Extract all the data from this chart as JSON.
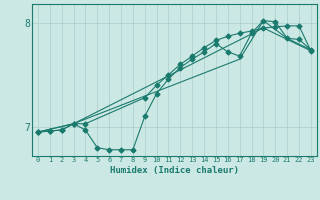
{
  "xlabel": "Humidex (Indice chaleur)",
  "background_color": "#cce8e4",
  "line_color": "#1a7a6e",
  "grid_color": "#aacfcb",
  "xlim": [
    -0.5,
    23.5
  ],
  "ylim": [
    6.72,
    8.18
  ],
  "yticks": [
    7,
    8
  ],
  "xticks": [
    0,
    1,
    2,
    3,
    4,
    5,
    6,
    7,
    8,
    9,
    10,
    11,
    12,
    13,
    14,
    15,
    16,
    17,
    18,
    19,
    20,
    21,
    22,
    23
  ],
  "line1_x": [
    0,
    1,
    2,
    3,
    4,
    5,
    6,
    7,
    8,
    9,
    10,
    11,
    12,
    13,
    14,
    15,
    16,
    17,
    18,
    19,
    20,
    21,
    22,
    23
  ],
  "line1_y": [
    6.95,
    6.96,
    6.97,
    7.03,
    6.97,
    6.8,
    6.78,
    6.78,
    6.78,
    7.1,
    7.32,
    7.46,
    7.57,
    7.65,
    7.72,
    7.8,
    7.72,
    7.68,
    7.9,
    8.02,
    8.01,
    7.85,
    7.84,
    7.74
  ],
  "line2_x": [
    0,
    1,
    2,
    3,
    4,
    9,
    10,
    11,
    12,
    13,
    14,
    15,
    16,
    17,
    18,
    19,
    20,
    21,
    22,
    23
  ],
  "line2_y": [
    6.95,
    6.96,
    6.97,
    7.03,
    7.03,
    7.28,
    7.4,
    7.5,
    7.6,
    7.68,
    7.76,
    7.83,
    7.87,
    7.9,
    7.92,
    7.95,
    7.96,
    7.97,
    7.97,
    7.73
  ],
  "line3_x": [
    0,
    3,
    19,
    23
  ],
  "line3_y": [
    6.95,
    7.03,
    7.95,
    7.73
  ],
  "line4_x": [
    0,
    3,
    17,
    19,
    21,
    23
  ],
  "line4_y": [
    6.95,
    7.03,
    7.65,
    8.02,
    7.85,
    7.74
  ]
}
